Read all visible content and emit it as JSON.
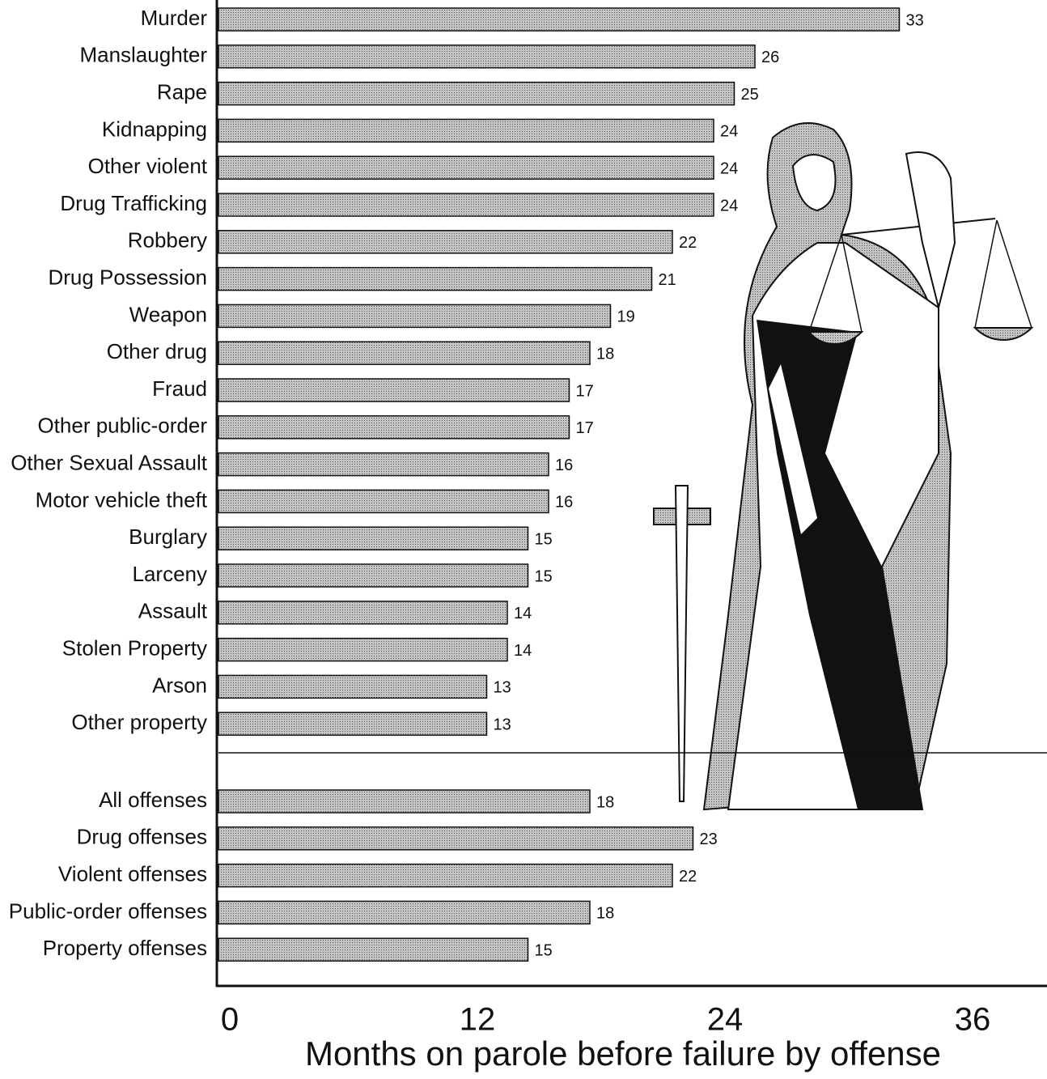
{
  "chart_data": {
    "type": "bar",
    "orientation": "horizontal",
    "x_label": "Months on parole before failure by offense",
    "categories": [
      "Murder",
      "Manslaughter",
      "Rape",
      "Kidnapping",
      "Other violent",
      "Drug Trafficking",
      "Robbery",
      "Drug Possession",
      "Weapon",
      "Other drug",
      "Fraud",
      "Other public-order",
      "Other Sexual Assault",
      "Motor vehicle theft",
      "Burglary",
      "Larceny",
      "Assault",
      "Stolen Property",
      "Arson",
      "Other property",
      "All offenses",
      "Drug offenses",
      "Violent offenses",
      "Public-order offenses",
      "Property offenses"
    ],
    "values": [
      33,
      26,
      25,
      24,
      24,
      24,
      22,
      21,
      19,
      18,
      17,
      17,
      16,
      16,
      15,
      15,
      14,
      14,
      13,
      13,
      18,
      23,
      22,
      18,
      15
    ],
    "color": "#c4c4c4",
    "xlim": [
      0,
      36
    ],
    "xticks": [
      0,
      12,
      24,
      36
    ],
    "grid": false
  }
}
